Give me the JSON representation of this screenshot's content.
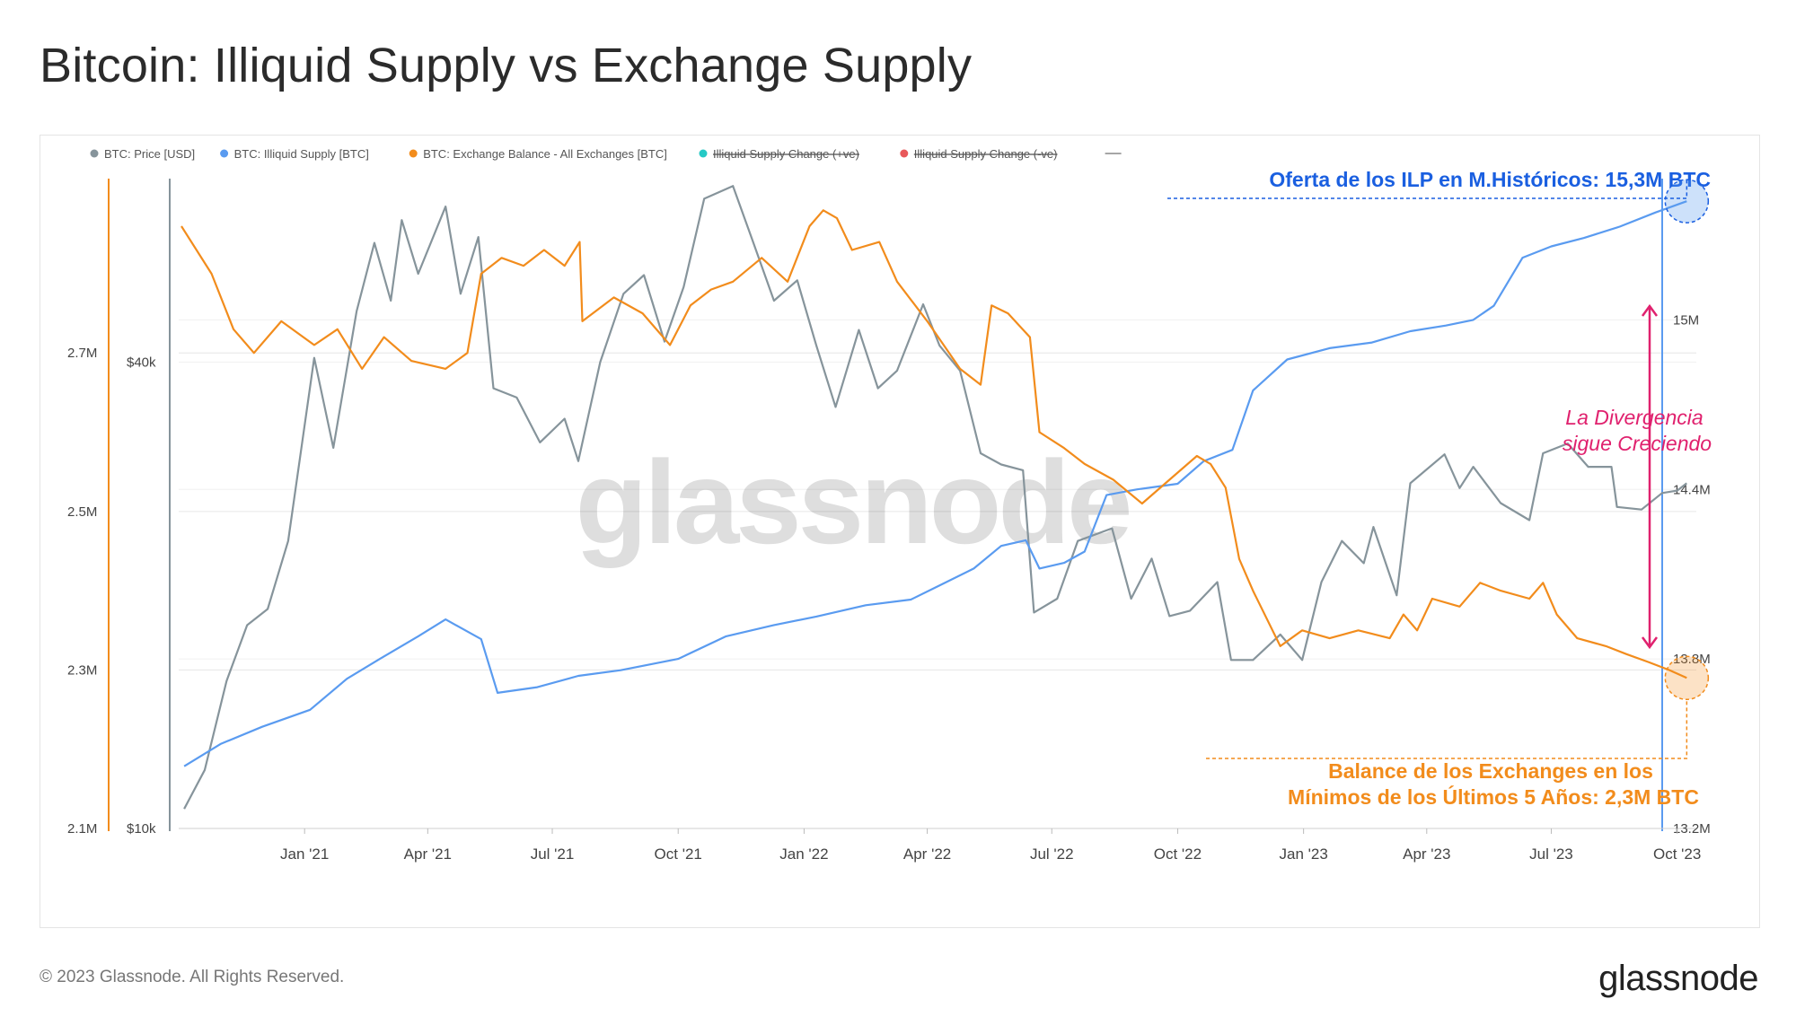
{
  "page": {
    "title": "Bitcoin: Illiquid Supply vs Exchange Supply",
    "copyright": "© 2023 Glassnode. All Rights Reserved.",
    "logo": "glassnode",
    "watermark": "glassnode"
  },
  "legend": [
    {
      "label": "BTC: Price [USD]",
      "color": "#86949b",
      "active": true
    },
    {
      "label": "BTC: Illiquid Supply [BTC]",
      "color": "#5a9bf0",
      "active": true
    },
    {
      "label": "BTC: Exchange Balance - All Exchanges [BTC]",
      "color": "#f28c1c",
      "active": true
    },
    {
      "label": "Illiquid Supply Change (+ve)",
      "color": "#25c9c5",
      "active": false
    },
    {
      "label": "Illiquid Supply Change (-ve)",
      "color": "#e8585a",
      "active": false
    }
  ],
  "annotations": {
    "top": "Oferta de los ILP en M.Históricos: 15,3M BTC",
    "divergence_line1": "La Divergencia",
    "divergence_line2": "sigue Creciendo",
    "bottom_line1": "Balance de los Exchanges en los",
    "bottom_line2": "Mínimos de los Últimos 5 Años: 2,3M BTC",
    "top_color": "#1a5fe0",
    "divergence_color": "#e0216e",
    "bottom_color": "#f28c1c"
  },
  "chart_data": {
    "type": "line",
    "x_range": [
      "2020-10-01",
      "2023-10-15"
    ],
    "x_ticks": [
      {
        "date": "2021-01-01",
        "label": "Jan '21"
      },
      {
        "date": "2021-04-01",
        "label": "Apr '21"
      },
      {
        "date": "2021-07-01",
        "label": "Jul '21"
      },
      {
        "date": "2021-10-01",
        "label": "Oct '21"
      },
      {
        "date": "2022-01-01",
        "label": "Jan '22"
      },
      {
        "date": "2022-04-01",
        "label": "Apr '22"
      },
      {
        "date": "2022-07-01",
        "label": "Jul '22"
      },
      {
        "date": "2022-10-01",
        "label": "Oct '22"
      },
      {
        "date": "2023-01-01",
        "label": "Jan '23"
      },
      {
        "date": "2023-04-01",
        "label": "Apr '23"
      },
      {
        "date": "2023-07-01",
        "label": "Jul '23"
      },
      {
        "date": "2023-10-01",
        "label": "Oct '23"
      }
    ],
    "axes": {
      "exchange": {
        "position": "left",
        "ticks": [
          {
            "value": 2100000,
            "label": "2.1M"
          },
          {
            "value": 2300000,
            "label": "2.3M"
          },
          {
            "value": 2500000,
            "label": "2.5M"
          },
          {
            "value": 2700000,
            "label": "2.7M"
          }
        ],
        "range": [
          2100000,
          2920000
        ]
      },
      "price": {
        "position": "left",
        "scale": "log",
        "ticks": [
          {
            "value": 10000,
            "label": "$10k"
          },
          {
            "value": 40000,
            "label": "$40k"
          }
        ],
        "range": [
          10000,
          69000
        ]
      },
      "illiquid": {
        "position": "right",
        "ticks": [
          {
            "value": 13200000,
            "label": "13.2M"
          },
          {
            "value": 13800000,
            "label": "13.8M"
          },
          {
            "value": 14400000,
            "label": "14.4M"
          },
          {
            "value": 15000000,
            "label": "15M"
          }
        ],
        "range": [
          13200000,
          15500000
        ]
      }
    },
    "grid": true,
    "series": [
      {
        "name": "BTC: Price [USD]",
        "axis": "price",
        "color": "#86949b",
        "points": [
          [
            "2020-10-05",
            10600
          ],
          [
            "2020-10-20",
            11900
          ],
          [
            "2020-11-05",
            15500
          ],
          [
            "2020-11-20",
            18300
          ],
          [
            "2020-12-05",
            19200
          ],
          [
            "2020-12-20",
            23500
          ],
          [
            "2021-01-08",
            40500
          ],
          [
            "2021-01-22",
            31000
          ],
          [
            "2021-02-08",
            46500
          ],
          [
            "2021-02-21",
            57000
          ],
          [
            "2021-03-05",
            48000
          ],
          [
            "2021-03-13",
            61000
          ],
          [
            "2021-03-25",
            52000
          ],
          [
            "2021-04-14",
            63500
          ],
          [
            "2021-04-25",
            49000
          ],
          [
            "2021-05-08",
            58000
          ],
          [
            "2021-05-19",
            37000
          ],
          [
            "2021-06-05",
            36000
          ],
          [
            "2021-06-22",
            31500
          ],
          [
            "2021-07-10",
            33800
          ],
          [
            "2021-07-20",
            29800
          ],
          [
            "2021-08-05",
            40000
          ],
          [
            "2021-08-22",
            49000
          ],
          [
            "2021-09-06",
            51800
          ],
          [
            "2021-09-21",
            42500
          ],
          [
            "2021-10-05",
            50000
          ],
          [
            "2021-10-20",
            65000
          ],
          [
            "2021-11-10",
            67500
          ],
          [
            "2021-11-25",
            57000
          ],
          [
            "2021-12-10",
            48000
          ],
          [
            "2021-12-27",
            51000
          ],
          [
            "2022-01-10",
            42000
          ],
          [
            "2022-01-24",
            35000
          ],
          [
            "2022-02-10",
            44000
          ],
          [
            "2022-02-24",
            37000
          ],
          [
            "2022-03-10",
            39000
          ],
          [
            "2022-03-29",
            47500
          ],
          [
            "2022-04-10",
            42000
          ],
          [
            "2022-04-25",
            39000
          ],
          [
            "2022-05-10",
            30500
          ],
          [
            "2022-05-25",
            29500
          ],
          [
            "2022-06-10",
            29000
          ],
          [
            "2022-06-18",
            19000
          ],
          [
            "2022-07-05",
            19800
          ],
          [
            "2022-07-20",
            23500
          ],
          [
            "2022-08-14",
            24400
          ],
          [
            "2022-08-28",
            19800
          ],
          [
            "2022-09-12",
            22300
          ],
          [
            "2022-09-25",
            18800
          ],
          [
            "2022-10-10",
            19100
          ],
          [
            "2022-10-30",
            20800
          ],
          [
            "2022-11-09",
            16500
          ],
          [
            "2022-11-25",
            16500
          ],
          [
            "2022-12-15",
            17800
          ],
          [
            "2022-12-31",
            16500
          ],
          [
            "2023-01-14",
            20800
          ],
          [
            "2023-01-29",
            23500
          ],
          [
            "2023-02-14",
            22000
          ],
          [
            "2023-02-21",
            24500
          ],
          [
            "2023-03-10",
            20000
          ],
          [
            "2023-03-20",
            27900
          ],
          [
            "2023-04-14",
            30400
          ],
          [
            "2023-04-25",
            27500
          ],
          [
            "2023-05-05",
            29300
          ],
          [
            "2023-05-25",
            26300
          ],
          [
            "2023-06-15",
            25000
          ],
          [
            "2023-06-25",
            30500
          ],
          [
            "2023-07-13",
            31400
          ],
          [
            "2023-07-28",
            29300
          ],
          [
            "2023-08-14",
            29300
          ],
          [
            "2023-08-18",
            26000
          ],
          [
            "2023-09-05",
            25800
          ],
          [
            "2023-09-20",
            27100
          ],
          [
            "2023-10-01",
            27300
          ],
          [
            "2023-10-08",
            27900
          ]
        ]
      },
      {
        "name": "BTC: Illiquid Supply [BTC]",
        "axis": "illiquid",
        "color": "#5a9bf0",
        "points": [
          [
            "2020-10-05",
            13420000
          ],
          [
            "2020-11-01",
            13500000
          ],
          [
            "2020-12-01",
            13560000
          ],
          [
            "2021-01-05",
            13620000
          ],
          [
            "2021-02-01",
            13730000
          ],
          [
            "2021-02-25",
            13800000
          ],
          [
            "2021-03-25",
            13880000
          ],
          [
            "2021-04-14",
            13940000
          ],
          [
            "2021-05-10",
            13870000
          ],
          [
            "2021-05-22",
            13680000
          ],
          [
            "2021-06-20",
            13700000
          ],
          [
            "2021-07-20",
            13740000
          ],
          [
            "2021-08-20",
            13760000
          ],
          [
            "2021-10-01",
            13800000
          ],
          [
            "2021-11-05",
            13880000
          ],
          [
            "2021-12-10",
            13920000
          ],
          [
            "2022-01-10",
            13950000
          ],
          [
            "2022-02-15",
            13990000
          ],
          [
            "2022-03-20",
            14010000
          ],
          [
            "2022-04-10",
            14060000
          ],
          [
            "2022-05-05",
            14120000
          ],
          [
            "2022-05-25",
            14200000
          ],
          [
            "2022-06-12",
            14220000
          ],
          [
            "2022-06-22",
            14120000
          ],
          [
            "2022-07-10",
            14140000
          ],
          [
            "2022-07-25",
            14180000
          ],
          [
            "2022-08-10",
            14380000
          ],
          [
            "2022-09-01",
            14400000
          ],
          [
            "2022-10-01",
            14420000
          ],
          [
            "2022-10-20",
            14500000
          ],
          [
            "2022-11-10",
            14540000
          ],
          [
            "2022-11-25",
            14750000
          ],
          [
            "2022-12-20",
            14860000
          ],
          [
            "2023-01-20",
            14900000
          ],
          [
            "2023-02-20",
            14920000
          ],
          [
            "2023-03-20",
            14960000
          ],
          [
            "2023-04-15",
            14980000
          ],
          [
            "2023-05-05",
            15000000
          ],
          [
            "2023-05-20",
            15050000
          ],
          [
            "2023-06-10",
            15220000
          ],
          [
            "2023-07-01",
            15260000
          ],
          [
            "2023-07-25",
            15290000
          ],
          [
            "2023-08-20",
            15330000
          ],
          [
            "2023-09-15",
            15380000
          ],
          [
            "2023-10-08",
            15420000
          ]
        ]
      },
      {
        "name": "BTC: Exchange Balance - All Exchanges [BTC]",
        "axis": "exchange",
        "color": "#f28c1c",
        "points": [
          [
            "2020-10-03",
            2860000
          ],
          [
            "2020-10-25",
            2800000
          ],
          [
            "2020-11-10",
            2730000
          ],
          [
            "2020-11-25",
            2700000
          ],
          [
            "2020-12-15",
            2740000
          ],
          [
            "2021-01-08",
            2710000
          ],
          [
            "2021-01-25",
            2730000
          ],
          [
            "2021-02-12",
            2680000
          ],
          [
            "2021-02-28",
            2720000
          ],
          [
            "2021-03-20",
            2690000
          ],
          [
            "2021-04-14",
            2680000
          ],
          [
            "2021-04-30",
            2700000
          ],
          [
            "2021-05-10",
            2800000
          ],
          [
            "2021-05-25",
            2820000
          ],
          [
            "2021-06-10",
            2810000
          ],
          [
            "2021-06-25",
            2830000
          ],
          [
            "2021-07-10",
            2810000
          ],
          [
            "2021-07-21",
            2840000
          ],
          [
            "2021-07-23",
            2740000
          ],
          [
            "2021-08-15",
            2770000
          ],
          [
            "2021-09-05",
            2750000
          ],
          [
            "2021-09-25",
            2710000
          ],
          [
            "2021-10-10",
            2760000
          ],
          [
            "2021-10-25",
            2780000
          ],
          [
            "2021-11-10",
            2790000
          ],
          [
            "2021-12-01",
            2820000
          ],
          [
            "2021-12-20",
            2790000
          ],
          [
            "2022-01-05",
            2860000
          ],
          [
            "2022-01-15",
            2880000
          ],
          [
            "2022-01-25",
            2870000
          ],
          [
            "2022-02-05",
            2830000
          ],
          [
            "2022-02-25",
            2840000
          ],
          [
            "2022-03-10",
            2790000
          ],
          [
            "2022-04-01",
            2740000
          ],
          [
            "2022-04-25",
            2680000
          ],
          [
            "2022-05-10",
            2660000
          ],
          [
            "2022-05-18",
            2760000
          ],
          [
            "2022-05-30",
            2750000
          ],
          [
            "2022-06-15",
            2720000
          ],
          [
            "2022-06-22",
            2600000
          ],
          [
            "2022-07-10",
            2580000
          ],
          [
            "2022-07-25",
            2560000
          ],
          [
            "2022-08-15",
            2540000
          ],
          [
            "2022-09-05",
            2510000
          ],
          [
            "2022-09-25",
            2540000
          ],
          [
            "2022-10-15",
            2570000
          ],
          [
            "2022-10-25",
            2560000
          ],
          [
            "2022-11-05",
            2530000
          ],
          [
            "2022-11-15",
            2440000
          ],
          [
            "2022-11-25",
            2400000
          ],
          [
            "2022-12-15",
            2330000
          ],
          [
            "2022-12-31",
            2350000
          ],
          [
            "2023-01-20",
            2340000
          ],
          [
            "2023-02-10",
            2350000
          ],
          [
            "2023-03-05",
            2340000
          ],
          [
            "2023-03-15",
            2370000
          ],
          [
            "2023-03-25",
            2350000
          ],
          [
            "2023-04-05",
            2390000
          ],
          [
            "2023-04-25",
            2380000
          ],
          [
            "2023-05-10",
            2410000
          ],
          [
            "2023-05-25",
            2400000
          ],
          [
            "2023-06-15",
            2390000
          ],
          [
            "2023-06-25",
            2410000
          ],
          [
            "2023-07-05",
            2370000
          ],
          [
            "2023-07-20",
            2340000
          ],
          [
            "2023-08-10",
            2330000
          ],
          [
            "2023-08-25",
            2320000
          ],
          [
            "2023-09-10",
            2310000
          ],
          [
            "2023-09-25",
            2300000
          ],
          [
            "2023-10-08",
            2290000
          ]
        ]
      }
    ]
  }
}
